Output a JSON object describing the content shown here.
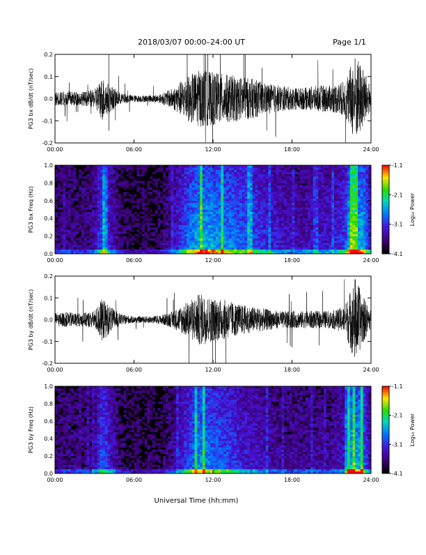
{
  "header": {
    "title": "2018/03/07  00:00–24:00 UT",
    "page": "Page 1/1"
  },
  "xlabel": "Universal Time (hh:mm)",
  "colorbar": {
    "label": "Log₁₀ Power",
    "ticks": [
      "-1.1",
      "-2.1",
      "-3.1",
      "-4.1"
    ],
    "range": [
      -4.1,
      -1.1
    ]
  },
  "chart_data": [
    {
      "type": "line",
      "ylabel": "PG3 bx dB/dt (nT/sec)",
      "ylim": [
        -0.2,
        0.2
      ],
      "yticks": [
        "0.2",
        "0.1",
        "0.0",
        "-0.1",
        "-0.2"
      ],
      "xticks": [
        "00:00",
        "06:00",
        "12:00",
        "18:00",
        "24:00"
      ],
      "xlim_hours": [
        0,
        24
      ],
      "envelope": {
        "hours": [
          0,
          1,
          2,
          3,
          3.6,
          4.2,
          5,
          6,
          7,
          8,
          9,
          10,
          11,
          12,
          13,
          14,
          15,
          16,
          17,
          18,
          19,
          20,
          21,
          22,
          22.8,
          23.3,
          24
        ],
        "amplitude": [
          0.03,
          0.035,
          0.03,
          0.04,
          0.1,
          0.06,
          0.025,
          0.015,
          0.015,
          0.02,
          0.05,
          0.1,
          0.13,
          0.12,
          0.11,
          0.1,
          0.09,
          0.07,
          0.06,
          0.05,
          0.05,
          0.06,
          0.06,
          0.08,
          0.2,
          0.15,
          0.05
        ]
      }
    },
    {
      "type": "heatmap",
      "ylabel": "PG3 bx Freq (Hz)",
      "ylim": [
        0,
        1.0
      ],
      "yticks": [
        "1.0",
        "0.8",
        "0.6",
        "0.4",
        "0.2",
        "0.0"
      ],
      "xticks": [
        "00:00",
        "06:00",
        "12:00",
        "18:00",
        "24:00"
      ],
      "zlabel": "Log₁₀ Power"
    },
    {
      "type": "line",
      "ylabel": "PG3 by dB/dt (nT/sec)",
      "ylim": [
        -0.2,
        0.2
      ],
      "yticks": [
        "0.2",
        "0.1",
        "0.0",
        "-0.1",
        "-0.2"
      ],
      "xticks": [
        "00:00",
        "06:00",
        "12:00",
        "18:00",
        "24:00"
      ],
      "xlim_hours": [
        0,
        24
      ],
      "envelope": {
        "hours": [
          0,
          1,
          2,
          3,
          3.6,
          4.2,
          5,
          6,
          7,
          8,
          9,
          10,
          11,
          12,
          13,
          14,
          15,
          16,
          17,
          18,
          19,
          20,
          21,
          22,
          22.8,
          23.3,
          24
        ],
        "amplitude": [
          0.03,
          0.035,
          0.03,
          0.04,
          0.1,
          0.06,
          0.025,
          0.015,
          0.015,
          0.02,
          0.04,
          0.08,
          0.12,
          0.1,
          0.09,
          0.07,
          0.06,
          0.05,
          0.04,
          0.04,
          0.04,
          0.04,
          0.04,
          0.06,
          0.2,
          0.12,
          0.04
        ]
      }
    },
    {
      "type": "heatmap",
      "ylabel": "PG3 by Freq (Hz)",
      "ylim": [
        0,
        1.0
      ],
      "yticks": [
        "1.0",
        "0.8",
        "0.6",
        "0.4",
        "0.2",
        "0.0"
      ],
      "xticks": [
        "00:00",
        "06:00",
        "12:00",
        "18:00",
        "24:00"
      ],
      "zlabel": "Log₁₀ Power"
    }
  ]
}
